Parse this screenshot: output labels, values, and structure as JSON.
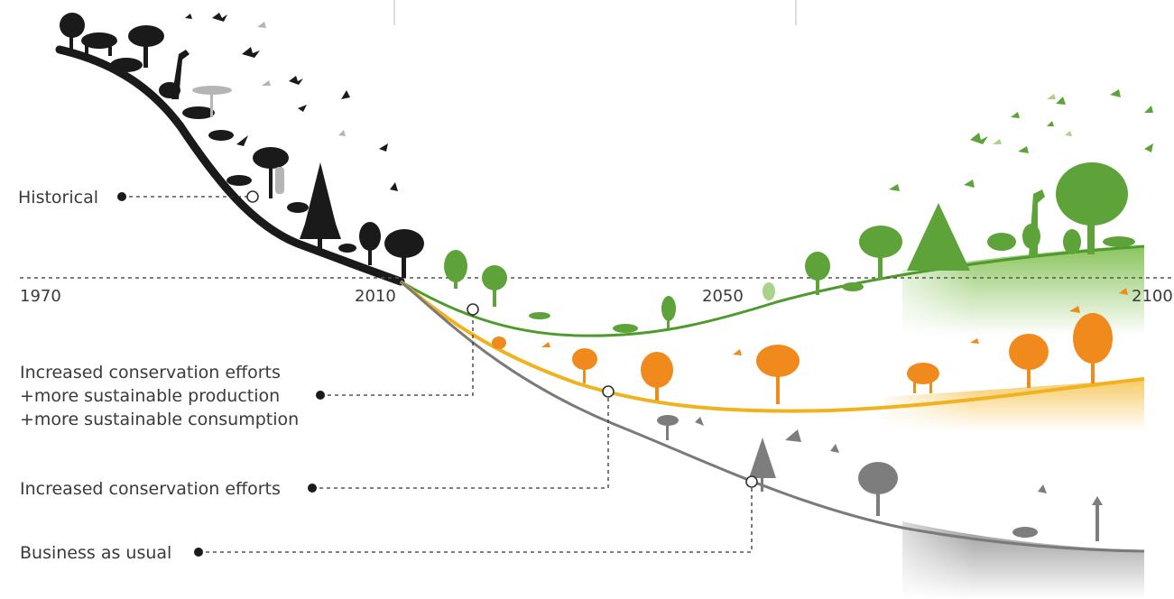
{
  "years": [
    "1970",
    "2010",
    "2050",
    "2100"
  ],
  "scenarios": {
    "historical": "Historical",
    "combined": [
      "Increased conservation efforts",
      "+more sustainable production",
      "+more sustainable consumption"
    ],
    "conservation": "Increased conservation efforts",
    "business": "Business as usual"
  },
  "colors": {
    "historical": "#1a1a1a",
    "combined": "#4e9a2c",
    "conservation": "#f0b21e",
    "business": "#8a8a8a",
    "orange_tree": "#f08a1c"
  },
  "icons": [
    "tree-icon",
    "animal-icon",
    "bird-icon",
    "giraffe-icon",
    "camel-icon"
  ]
}
